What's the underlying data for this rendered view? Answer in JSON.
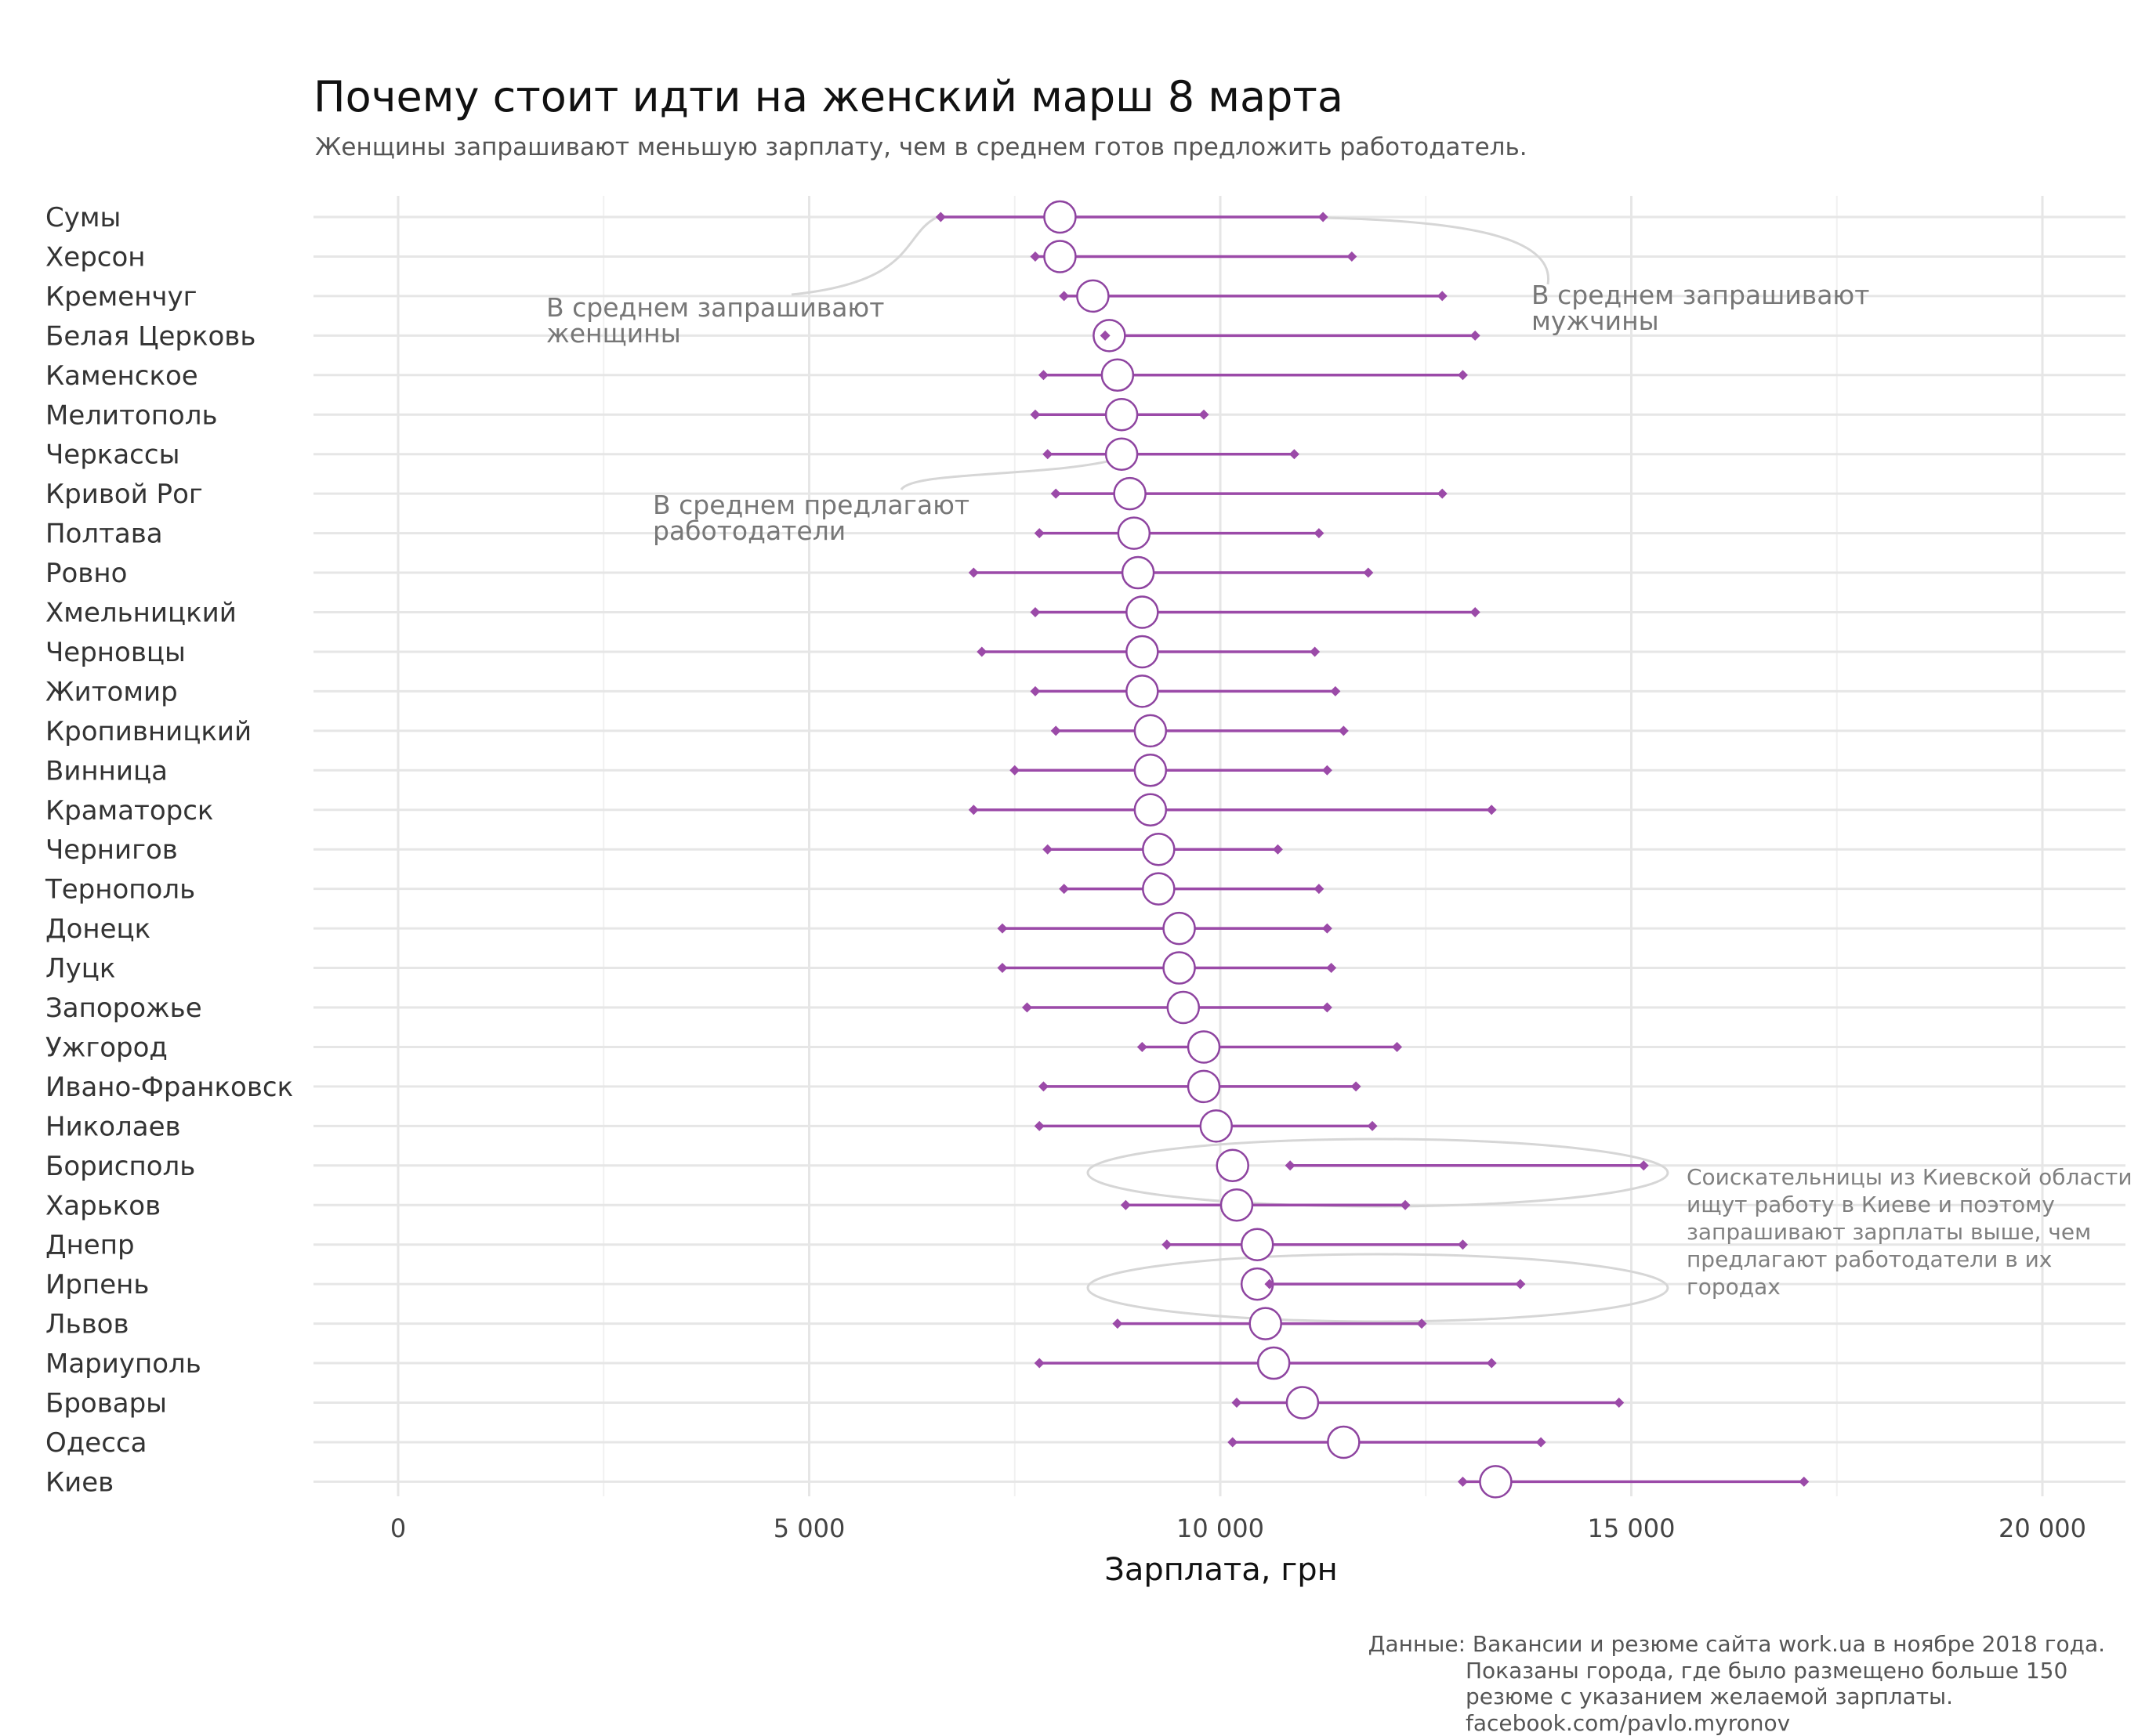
{
  "title": "Почему стоит идти на женский марш 8 марта",
  "subtitle": "Женщины запрашивают меньшую зарплату, чем в среднем готов предложить работодатель.",
  "colors": {
    "line": "#9b4aa8",
    "employer_fill": "#ffffff",
    "grid": "#e6e6e6",
    "annotation": "#777777"
  },
  "chart_data": {
    "type": "dumbbell",
    "xlabel": "Зарплата, грн",
    "xlim": [
      -1000,
      21000
    ],
    "xticks": [
      {
        "value": 0,
        "label": "0"
      },
      {
        "value": 5000,
        "label": "5 000"
      },
      {
        "value": 10000,
        "label": "10 000"
      },
      {
        "value": 15000,
        "label": "15 000"
      },
      {
        "value": 20000,
        "label": "20 000"
      }
    ],
    "series_fields": [
      "women",
      "employers",
      "men"
    ],
    "cities": [
      {
        "name": "Сумы",
        "women": 6600,
        "employers": 8050,
        "men": 11250
      },
      {
        "name": "Херсон",
        "women": 7750,
        "employers": 8050,
        "men": 11600
      },
      {
        "name": "Кременчуг",
        "women": 8100,
        "employers": 8450,
        "men": 12700
      },
      {
        "name": "Белая Церковь",
        "women": 8600,
        "employers": 8650,
        "men": 13100
      },
      {
        "name": "Каменское",
        "women": 7850,
        "employers": 8750,
        "men": 12950
      },
      {
        "name": "Мелитополь",
        "women": 7750,
        "employers": 8800,
        "men": 9800
      },
      {
        "name": "Черкассы",
        "women": 7900,
        "employers": 8800,
        "men": 10900
      },
      {
        "name": "Кривой Рог",
        "women": 8000,
        "employers": 8900,
        "men": 12700
      },
      {
        "name": "Полтава",
        "women": 7800,
        "employers": 8950,
        "men": 11200
      },
      {
        "name": "Ровно",
        "women": 7000,
        "employers": 9000,
        "men": 11800
      },
      {
        "name": "Хмельницкий",
        "women": 7750,
        "employers": 9050,
        "men": 13100
      },
      {
        "name": "Черновцы",
        "women": 7100,
        "employers": 9050,
        "men": 11150
      },
      {
        "name": "Житомир",
        "women": 7750,
        "employers": 9050,
        "men": 11400
      },
      {
        "name": "Кропивницкий",
        "women": 8000,
        "employers": 9150,
        "men": 11500
      },
      {
        "name": "Винница",
        "women": 7500,
        "employers": 9150,
        "men": 11300
      },
      {
        "name": "Краматорск",
        "women": 7000,
        "employers": 9150,
        "men": 13300
      },
      {
        "name": "Чернигов",
        "women": 7900,
        "employers": 9250,
        "men": 10700
      },
      {
        "name": "Тернополь",
        "women": 8100,
        "employers": 9250,
        "men": 11200
      },
      {
        "name": "Донецк",
        "women": 7350,
        "employers": 9500,
        "men": 11300
      },
      {
        "name": "Луцк",
        "women": 7350,
        "employers": 9500,
        "men": 11350
      },
      {
        "name": "Запорожье",
        "women": 7650,
        "employers": 9550,
        "men": 11300
      },
      {
        "name": "Ужгород",
        "women": 9050,
        "employers": 9800,
        "men": 12150
      },
      {
        "name": "Ивано-Франковск",
        "women": 7850,
        "employers": 9800,
        "men": 11650
      },
      {
        "name": "Николаев",
        "women": 7800,
        "employers": 9950,
        "men": 11850
      },
      {
        "name": "Борисполь",
        "women": 10850,
        "employers": 10150,
        "men": 15150
      },
      {
        "name": "Харьков",
        "women": 8850,
        "employers": 10200,
        "men": 12250
      },
      {
        "name": "Днепр",
        "women": 9350,
        "employers": 10450,
        "men": 12950
      },
      {
        "name": "Ирпень",
        "women": 10600,
        "employers": 10450,
        "men": 13650
      },
      {
        "name": "Львов",
        "women": 8750,
        "employers": 10550,
        "men": 12450
      },
      {
        "name": "Мариуполь",
        "women": 7800,
        "employers": 10650,
        "men": 13300
      },
      {
        "name": "Бровары",
        "women": 10200,
        "employers": 11000,
        "men": 14850
      },
      {
        "name": "Одесса",
        "women": 10150,
        "employers": 11500,
        "men": 13900
      },
      {
        "name": "Киев",
        "women": 12950,
        "employers": 13350,
        "men": 17100
      }
    ]
  },
  "annotations": {
    "women": [
      "В среднем запрашивают",
      "женщины"
    ],
    "men": [
      "В среднем запрашивают",
      "мужчины"
    ],
    "employers": [
      "В среднем предлагают",
      "работодатели"
    ],
    "kyiv_region": [
      "Соискательницы из Киевской области",
      "ищут работу в Киеве и поэтому",
      "запрашивают зарплаты выше, чем",
      "предлагают работодатели в их",
      "городах"
    ]
  },
  "caption": {
    "lines": [
      "Данные: Вакансии и резюме сайта work.ua в ноябре 2018 года.",
      "Показаны города, где было размещено больше 150",
      "резюме с указанием желаемой зарплаты."
    ],
    "credit": "facebook.com/pavlo.myronov"
  }
}
